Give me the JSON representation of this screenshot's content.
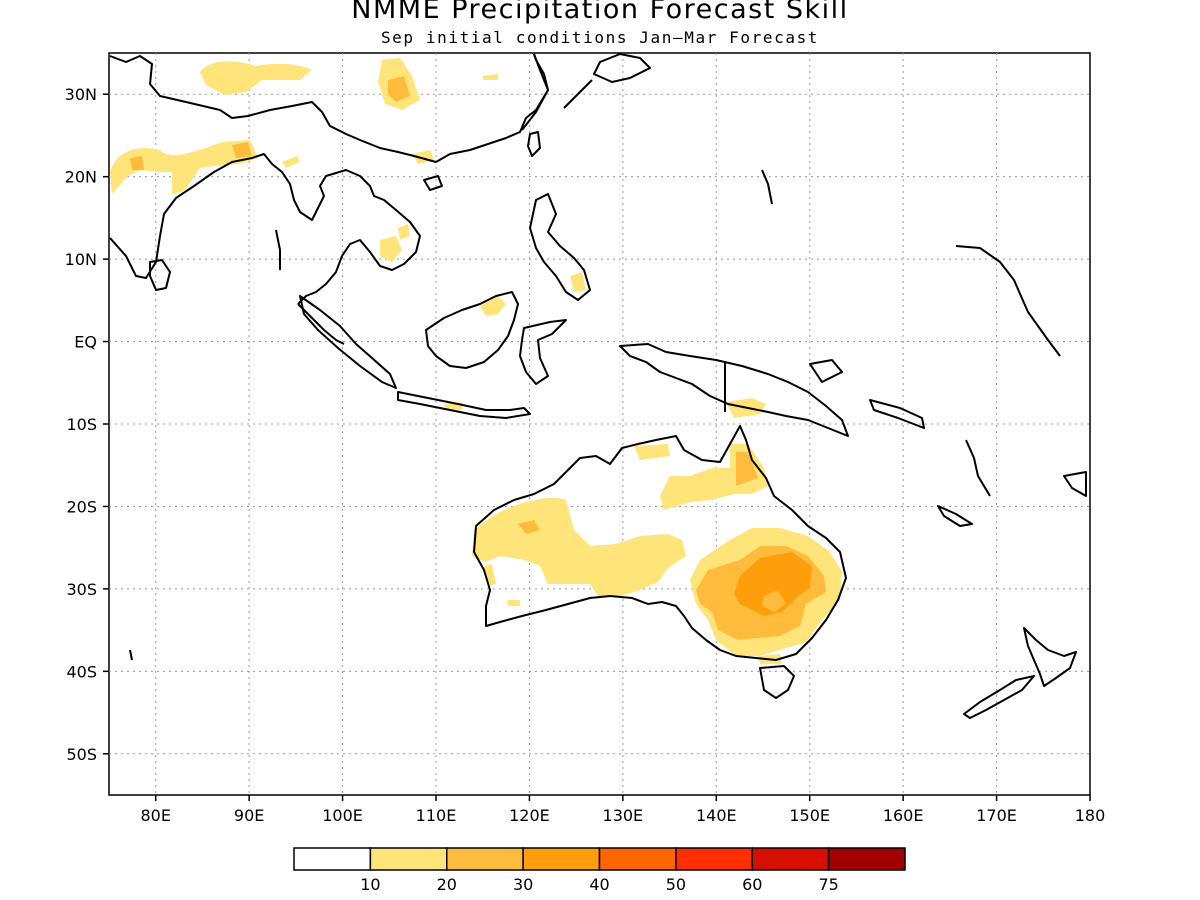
{
  "title": "NMME Precipitation Forecast Skill",
  "subtitle": "Sep initial conditions  Jan–Mar Forecast",
  "map": {
    "lon_range": [
      75,
      180
    ],
    "lat_range": [
      -55,
      35
    ],
    "lon_labels": [
      "80E",
      "90E",
      "100E",
      "110E",
      "120E",
      "130E",
      "140E",
      "150E",
      "160E",
      "170E",
      "180"
    ],
    "lon_values": [
      80,
      90,
      100,
      110,
      120,
      130,
      140,
      150,
      160,
      170,
      180
    ],
    "lat_labels": [
      "30N",
      "20N",
      "10N",
      "EQ",
      "10S",
      "20S",
      "30S",
      "40S",
      "50S"
    ],
    "lat_values": [
      30,
      20,
      10,
      0,
      -10,
      -20,
      -30,
      -40,
      -50
    ],
    "grid": "dotted",
    "coastline_color": "#000000"
  },
  "colorbar": {
    "thresholds": [
      "10",
      "20",
      "30",
      "40",
      "50",
      "60",
      "75"
    ],
    "colors": [
      "#ffffff",
      "#ffe479",
      "#ffbc3c",
      "#ff9e0c",
      "#ff6600",
      "#ff2e00",
      "#d60f00",
      "#a00000"
    ]
  },
  "skill_regions": [
    {
      "name": "south-asia-west",
      "colors": "#ffe479"
    },
    {
      "name": "tibet-south-china",
      "colors": "#ffe479"
    },
    {
      "name": "western-australia",
      "colors": "#ffe479"
    },
    {
      "name": "southeast-australia",
      "colors": "#ffbc3c"
    },
    {
      "name": "queensland",
      "colors": "#ffe479"
    }
  ]
}
